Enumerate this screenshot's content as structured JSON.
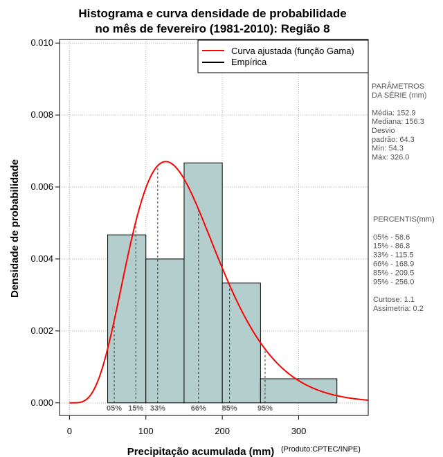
{
  "chart_data": {
    "type": "bar",
    "title_line1": "Histograma e curva densidade de probabilidade",
    "title_line2": "no mês de fevereiro (1981-2010): Região 8",
    "xlabel": "Precipitação acumulada (mm)",
    "ylabel": "Densidade de probabilidade",
    "credit": "(Produto:CPTEC/INPE)",
    "xlim": [
      -13,
      391
    ],
    "ylim": [
      -0.00035,
      0.0101
    ],
    "x_ticks": [
      0,
      100,
      200,
      300
    ],
    "x_tick_labels": [
      "0",
      "100",
      "200",
      "300"
    ],
    "y_ticks": [
      0.0,
      0.002,
      0.004,
      0.006,
      0.008,
      0.01
    ],
    "y_tick_labels": [
      "0.000",
      "0.002",
      "0.004",
      "0.006",
      "0.008",
      "0.010"
    ],
    "grid": true,
    "bins": [
      {
        "from": 50,
        "to": 100,
        "density": 0.00467
      },
      {
        "from": 100,
        "to": 150,
        "density": 0.004
      },
      {
        "from": 150,
        "to": 200,
        "density": 0.00667
      },
      {
        "from": 200,
        "to": 250,
        "density": 0.00333
      },
      {
        "from": 250,
        "to": 350,
        "density": 0.00067
      }
    ],
    "bar_color": "#b4cdcd",
    "curve": {
      "name": "Curva ajustada (função Gama)",
      "distribution": "gamma",
      "shape": 5.65,
      "scale": 27.1,
      "color": "#ff0000"
    },
    "legend": [
      {
        "label": "Curva ajustada (função Gama)",
        "color": "#ff0000"
      },
      {
        "label": "Empírica",
        "color": "#000000"
      }
    ],
    "legend_position": "top-right",
    "percentiles": [
      {
        "label": "05%",
        "value": 58.6
      },
      {
        "label": "15%",
        "value": 86.8
      },
      {
        "label": "33%",
        "value": 115.5
      },
      {
        "label": "66%",
        "value": 168.9
      },
      {
        "label": "85%",
        "value": 209.5
      },
      {
        "label": "95%",
        "value": 256.0
      }
    ],
    "stats_text": [
      "PARÂMETROS",
      " DA SÉRIE (mm)",
      "",
      "Média:  152.9",
      "Mediana:  156.3",
      "Desvio",
      "padrão:  64.3",
      "Mín:  54.3",
      "Máx:  326.0"
    ],
    "percentile_text": [
      " PERCENTIS(mm)",
      "",
      "05% -   58.6",
      "15% -   86.8",
      "33% -  115.5",
      "66% -  168.9",
      "85% -  209.5",
      "95% -  256.0",
      "",
      "Curtose:  1.1",
      "Assimetria:  0.2"
    ]
  }
}
